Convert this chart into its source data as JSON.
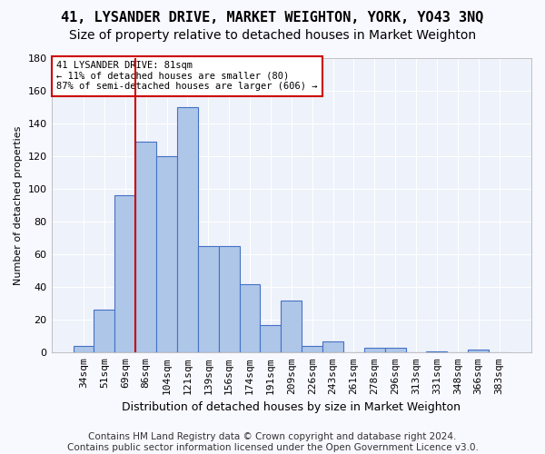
{
  "title1": "41, LYSANDER DRIVE, MARKET WEIGHTON, YORK, YO43 3NQ",
  "title2": "Size of property relative to detached houses in Market Weighton",
  "xlabel": "Distribution of detached houses by size in Market Weighton",
  "ylabel": "Number of detached properties",
  "categories": [
    "34sqm",
    "51sqm",
    "69sqm",
    "86sqm",
    "104sqm",
    "121sqm",
    "139sqm",
    "156sqm",
    "174sqm",
    "191sqm",
    "209sqm",
    "226sqm",
    "243sqm",
    "261sqm",
    "278sqm",
    "296sqm",
    "313sqm",
    "331sqm",
    "348sqm",
    "366sqm",
    "383sqm"
  ],
  "bar_values": [
    4,
    26,
    96,
    129,
    120,
    150,
    65,
    65,
    42,
    17,
    32,
    4,
    7,
    0,
    3,
    3,
    0,
    1,
    0,
    2,
    0
  ],
  "bar_color": "#aec6e8",
  "bar_edge_color": "#4472c4",
  "bar_width": 1.0,
  "vline_x": 2.5,
  "vline_color": "#cc0000",
  "ylim": [
    0,
    180
  ],
  "yticks": [
    0,
    20,
    40,
    60,
    80,
    100,
    120,
    140,
    160,
    180
  ],
  "annotation_text": "41 LYSANDER DRIVE: 81sqm\n← 11% of detached houses are smaller (80)\n87% of semi-detached houses are larger (606) →",
  "annotation_box_color": "#ffffff",
  "annotation_box_edge": "#cc0000",
  "footer1": "Contains HM Land Registry data © Crown copyright and database right 2024.",
  "footer2": "Contains public sector information licensed under the Open Government Licence v3.0.",
  "background_color": "#eef2fa",
  "grid_color": "#ffffff",
  "title1_fontsize": 11,
  "title2_fontsize": 10,
  "xlabel_fontsize": 9,
  "ylabel_fontsize": 8,
  "tick_fontsize": 8,
  "footer_fontsize": 7.5,
  "ann_fontsize": 7.5
}
